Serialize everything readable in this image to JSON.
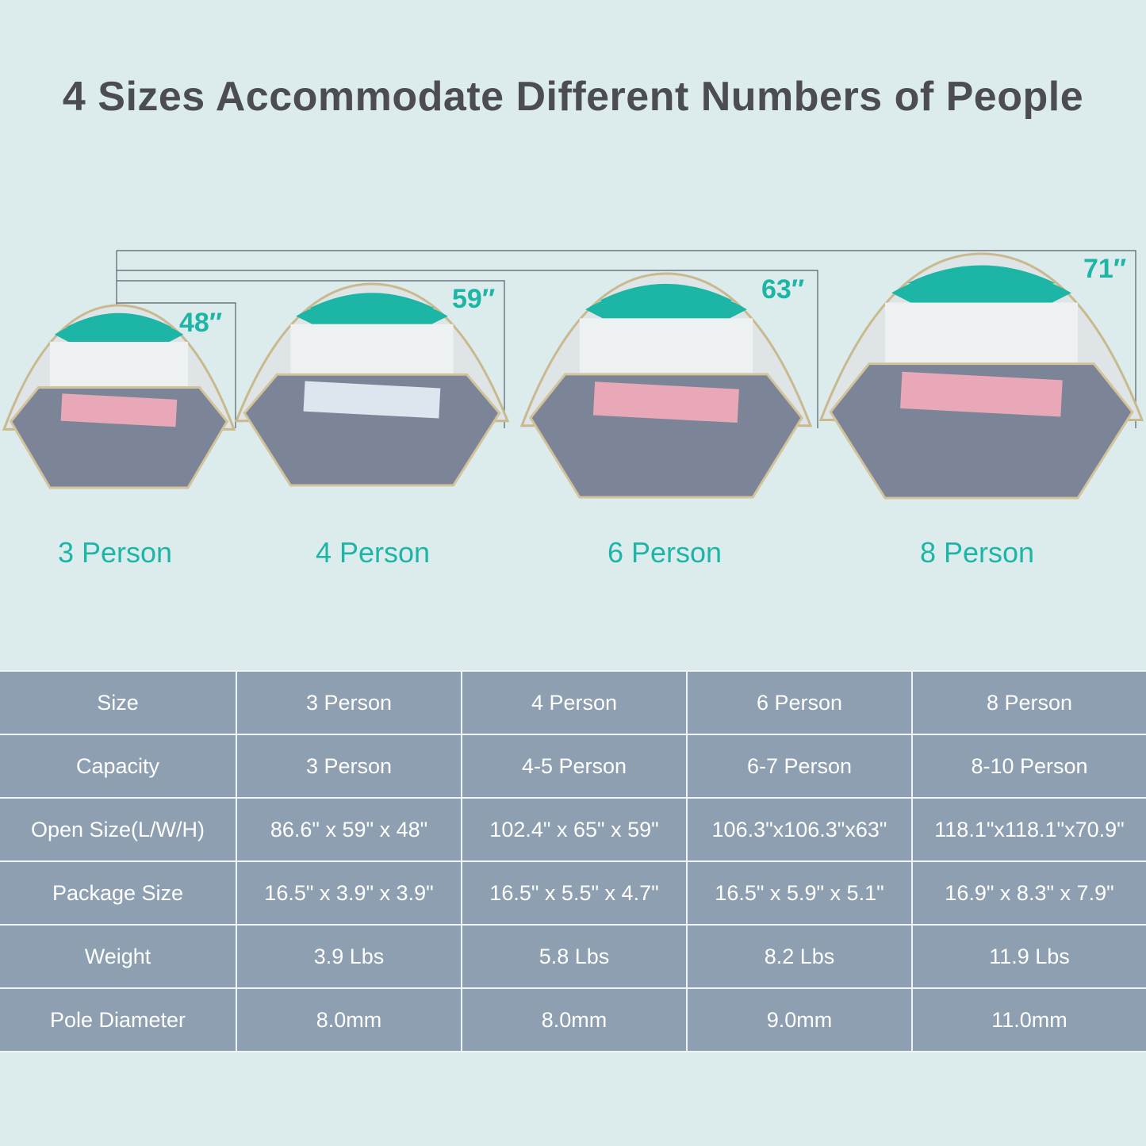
{
  "title": "4 Sizes Accommodate Different Numbers of People",
  "colors": {
    "accent": "#1db5a5",
    "table_bg": "#8e9fb1",
    "background": "#dcebec",
    "floor": "#7b8597"
  },
  "tents": [
    {
      "label": "3 Person",
      "height": "48″"
    },
    {
      "label": "4 Person",
      "height": "59″"
    },
    {
      "label": "6 Person",
      "height": "63″"
    },
    {
      "label": "8 Person",
      "height": "71″"
    }
  ],
  "table": {
    "rows": [
      [
        "Size",
        "3 Person",
        "4 Person",
        "6 Person",
        "8 Person"
      ],
      [
        "Capacity",
        "3 Person",
        "4-5 Person",
        "6-7 Person",
        "8-10 Person"
      ],
      [
        "Open Size(L/W/H)",
        "86.6\" x 59\" x 48\"",
        "102.4\" x 65\" x 59\"",
        "106.3\"x106.3\"x63\"",
        "118.1\"x118.1\"x70.9\""
      ],
      [
        "Package Size",
        "16.5\" x 3.9\" x 3.9\"",
        "16.5\" x 5.5\" x 4.7\"",
        "16.5\" x 5.9\" x 5.1\"",
        "16.9\" x 8.3\" x 7.9\""
      ],
      [
        "Weight",
        "3.9 Lbs",
        "5.8 Lbs",
        "8.2 Lbs",
        "11.9 Lbs"
      ],
      [
        "Pole Diameter",
        "8.0mm",
        "8.0mm",
        "9.0mm",
        "11.0mm"
      ]
    ]
  }
}
